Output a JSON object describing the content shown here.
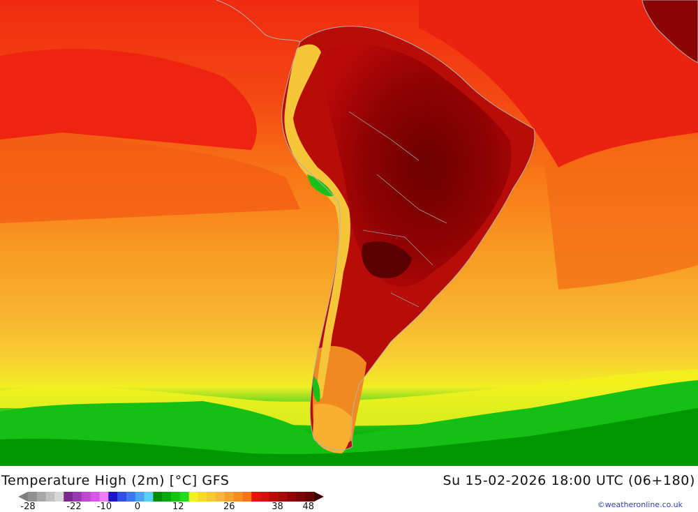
{
  "title": "Temperature High (2m) [°C] GFS",
  "datetime": "Su 15-02-2026 18:00 UTC (06+180)",
  "credit": "©weatheronline.co.uk",
  "legend": {
    "colors": [
      "#909090",
      "#a8a8a8",
      "#c0c0c0",
      "#d8d8d8",
      "#7a2a8c",
      "#9a38b0",
      "#bb46d0",
      "#d856e8",
      "#f07cf8",
      "#1e14c8",
      "#2e4ee6",
      "#3c78f2",
      "#4aa4f6",
      "#5acff8",
      "#008c00",
      "#08a808",
      "#12c412",
      "#20dc20",
      "#f2f21e",
      "#f8da2a",
      "#f8c832",
      "#f8b43c",
      "#f8a02e",
      "#f88c1e",
      "#f87414",
      "#e8140c",
      "#d4100a",
      "#bc0c08",
      "#a80806",
      "#920404",
      "#7c0202",
      "#660000"
    ],
    "ticks": [
      {
        "label": "-28",
        "pos": 0.0
      },
      {
        "label": "-22",
        "pos": 0.161
      },
      {
        "label": "-10",
        "pos": 0.267
      },
      {
        "label": "0",
        "pos": 0.383
      },
      {
        "label": "12",
        "pos": 0.525
      },
      {
        "label": "26",
        "pos": 0.703
      },
      {
        "label": "38",
        "pos": 0.872
      },
      {
        "label": "48",
        "pos": 0.98
      }
    ]
  }
}
